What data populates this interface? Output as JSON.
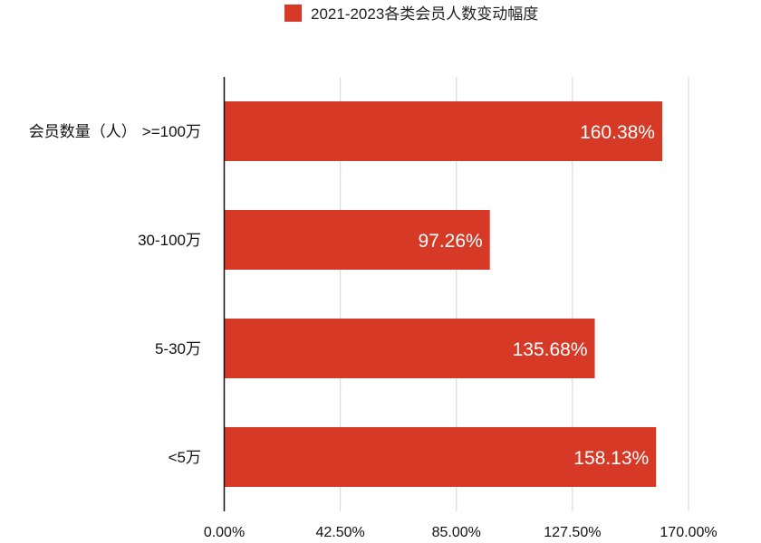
{
  "chart_data": {
    "type": "bar",
    "orientation": "horizontal",
    "title": "",
    "xlabel": "",
    "ylabel": "",
    "xlim": [
      0,
      170
    ],
    "x_ticks": [
      0,
      42.5,
      85,
      127.5,
      170
    ],
    "x_tick_labels": [
      "0.00%",
      "42.50%",
      "85.00%",
      "127.50%",
      "170.00%"
    ],
    "grid": true,
    "legend": {
      "position": "top",
      "entries": [
        "2021-2023各类会员人数变动幅度"
      ]
    },
    "category_axis_title": "会员数量（人）",
    "categories": [
      ">=100万",
      "30-100万",
      "5-30万",
      "<5万"
    ],
    "series": [
      {
        "name": "2021-2023各类会员人数变动幅度",
        "color": "#d63a26",
        "values": [
          160.38,
          97.26,
          135.68,
          158.13
        ],
        "value_labels": [
          "160.38%",
          "97.26%",
          "135.68%",
          "158.13%"
        ]
      }
    ]
  }
}
